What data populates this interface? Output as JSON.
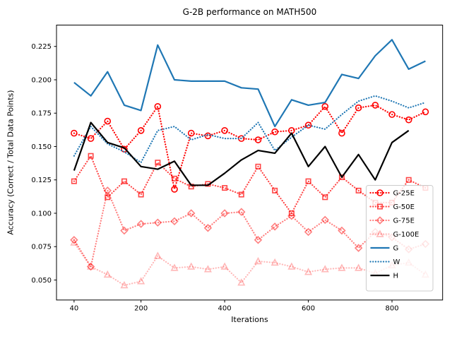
{
  "figure": {
    "title": "G-2B performance on MATH500",
    "xlabel": "Iterations",
    "ylabel": "Accuracy (Correct / Total Data Points)"
  },
  "chart_data": {
    "type": "line",
    "title": "G-2B performance on MATH500",
    "xlabel": "Iterations",
    "ylabel": "Accuracy (Correct / Total Data Points)",
    "grid": false,
    "legend_position": "lower right",
    "xlim": [
      -2,
      921
    ],
    "ylim": [
      0.035,
      0.241
    ],
    "x_ticks": [
      40,
      200,
      400,
      600,
      800
    ],
    "y_ticks": [
      0.05,
      0.075,
      0.1,
      0.125,
      0.15,
      0.175,
      0.2,
      0.225
    ],
    "x": [
      40,
      80,
      120,
      160,
      200,
      240,
      280,
      320,
      360,
      400,
      440,
      480,
      520,
      560,
      600,
      640,
      680,
      720,
      760,
      800,
      840,
      880
    ],
    "series": [
      {
        "name": "G-25E",
        "color": "#ff0000",
        "opacity": 1.0,
        "line": "dotted",
        "marker": "circle",
        "values": [
          0.16,
          0.156,
          0.169,
          0.148,
          0.162,
          0.18,
          0.118,
          0.16,
          0.158,
          0.162,
          0.156,
          0.155,
          0.161,
          0.162,
          0.166,
          0.18,
          0.16,
          0.179,
          0.181,
          0.174,
          0.17,
          0.176
        ]
      },
      {
        "name": "G-50E",
        "color": "#ff0000",
        "opacity": 0.72,
        "line": "dotted",
        "marker": "square",
        "values": [
          0.124,
          0.143,
          0.112,
          0.124,
          0.114,
          0.138,
          0.126,
          0.12,
          0.122,
          0.119,
          0.114,
          0.135,
          0.117,
          0.1,
          0.124,
          0.112,
          0.127,
          0.117,
          0.108,
          0.108,
          0.125,
          0.119
        ]
      },
      {
        "name": "G-75E",
        "color": "#ff0000",
        "opacity": 0.5,
        "line": "dotted",
        "marker": "diamond",
        "values": [
          0.08,
          0.06,
          0.117,
          0.087,
          0.092,
          0.093,
          0.094,
          0.1,
          0.089,
          0.1,
          0.101,
          0.08,
          0.09,
          0.098,
          0.086,
          0.095,
          0.087,
          0.074,
          0.086,
          0.082,
          0.073,
          0.077
        ]
      },
      {
        "name": "G-100E",
        "color": "#ff0000",
        "opacity": 0.28,
        "line": "dotted",
        "marker": "triangle",
        "values": [
          0.078,
          0.06,
          0.054,
          0.046,
          0.049,
          0.068,
          0.059,
          0.06,
          0.058,
          0.06,
          0.048,
          0.064,
          0.063,
          0.06,
          0.056,
          0.058,
          0.059,
          0.059,
          0.055,
          0.061,
          0.063,
          0.054
        ]
      },
      {
        "name": "G",
        "color": "#1f77b4",
        "opacity": 1.0,
        "line": "solid",
        "marker": "none",
        "values": [
          0.198,
          0.188,
          0.206,
          0.181,
          0.177,
          0.226,
          0.2,
          0.199,
          0.199,
          0.199,
          0.194,
          0.193,
          0.165,
          0.185,
          0.181,
          0.183,
          0.204,
          0.201,
          0.218,
          0.23,
          0.208,
          0.214
        ]
      },
      {
        "name": "W",
        "color": "#1f77b4",
        "opacity": 1.0,
        "line": "dotted",
        "marker": "none",
        "values": [
          0.143,
          0.165,
          0.152,
          0.146,
          0.138,
          0.162,
          0.165,
          0.155,
          0.159,
          0.156,
          0.156,
          0.168,
          0.147,
          0.157,
          0.166,
          0.163,
          0.174,
          0.184,
          0.188,
          0.184,
          0.179,
          0.183
        ]
      },
      {
        "name": "H",
        "color": "#000000",
        "opacity": 1.0,
        "line": "solid",
        "marker": "none",
        "values": [
          0.132,
          0.168,
          0.153,
          0.149,
          0.135,
          0.133,
          0.139,
          0.121,
          0.121,
          0.13,
          0.14,
          0.147,
          0.145,
          0.16,
          0.135,
          0.15,
          0.127,
          0.144,
          0.125,
          0.153,
          0.162,
          null
        ]
      }
    ]
  }
}
